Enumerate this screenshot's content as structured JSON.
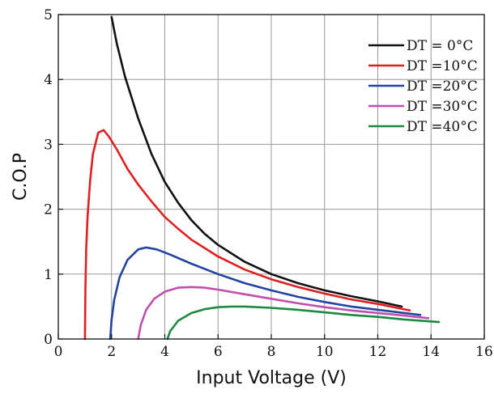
{
  "chart_data": {
    "type": "line",
    "xlabel": "Input Voltage (V)",
    "ylabel": "C.O.P",
    "xlim": [
      0,
      16
    ],
    "ylim": [
      0,
      5
    ],
    "xticks": [
      0,
      2,
      4,
      6,
      8,
      10,
      12,
      14,
      16
    ],
    "yticks": [
      0,
      1,
      2,
      3,
      4,
      5
    ],
    "grid": true,
    "legend_position": "top-right",
    "series": [
      {
        "name": "DT = 0°C",
        "color": "#111111",
        "x": [
          2.0,
          2.2,
          2.5,
          3.0,
          3.5,
          4.0,
          4.5,
          5.0,
          5.5,
          6.0,
          7.0,
          8.0,
          9.0,
          10.0,
          11.0,
          12.0,
          12.9
        ],
        "y": [
          4.96,
          4.55,
          4.05,
          3.4,
          2.85,
          2.42,
          2.1,
          1.83,
          1.62,
          1.45,
          1.19,
          1.0,
          0.86,
          0.75,
          0.66,
          0.58,
          0.5
        ]
      },
      {
        "name": "DT =10°C",
        "color": "#e02020",
        "x": [
          1.0,
          1.02,
          1.05,
          1.1,
          1.2,
          1.3,
          1.5,
          1.7,
          1.9,
          2.2,
          2.6,
          3.0,
          3.5,
          4.0,
          4.5,
          5.0,
          6.0,
          7.0,
          8.0,
          9.0,
          10.0,
          11.0,
          12.0,
          13.2
        ],
        "y": [
          0.0,
          0.8,
          1.4,
          1.9,
          2.45,
          2.85,
          3.18,
          3.22,
          3.12,
          2.92,
          2.62,
          2.38,
          2.12,
          1.88,
          1.7,
          1.53,
          1.27,
          1.07,
          0.92,
          0.8,
          0.7,
          0.61,
          0.54,
          0.44
        ]
      },
      {
        "name": "DT =20°C",
        "color": "#2244a0",
        "x": [
          1.95,
          2.0,
          2.1,
          2.3,
          2.6,
          3.0,
          3.3,
          3.7,
          4.2,
          5.0,
          6.0,
          7.0,
          8.0,
          9.0,
          10.0,
          11.0,
          12.0,
          13.0,
          13.6
        ],
        "y": [
          0.0,
          0.3,
          0.6,
          0.95,
          1.22,
          1.38,
          1.41,
          1.38,
          1.3,
          1.16,
          1.0,
          0.86,
          0.75,
          0.65,
          0.57,
          0.5,
          0.45,
          0.4,
          0.37
        ]
      },
      {
        "name": "DT =30°C",
        "color": "#c050b0",
        "x": [
          3.0,
          3.1,
          3.3,
          3.6,
          4.0,
          4.5,
          5.0,
          5.5,
          6.0,
          7.0,
          8.0,
          9.0,
          10.0,
          11.0,
          12.0,
          13.0,
          13.9
        ],
        "y": [
          0.0,
          0.22,
          0.45,
          0.62,
          0.73,
          0.79,
          0.8,
          0.79,
          0.76,
          0.69,
          0.62,
          0.55,
          0.49,
          0.44,
          0.4,
          0.36,
          0.32
        ]
      },
      {
        "name": "DT =40°C",
        "color": "#1a8a40",
        "x": [
          4.1,
          4.2,
          4.5,
          5.0,
          5.5,
          6.0,
          6.5,
          7.0,
          8.0,
          9.0,
          10.0,
          11.0,
          12.0,
          13.0,
          14.3
        ],
        "y": [
          0.0,
          0.12,
          0.28,
          0.4,
          0.46,
          0.49,
          0.5,
          0.5,
          0.48,
          0.45,
          0.41,
          0.37,
          0.34,
          0.3,
          0.26
        ]
      }
    ]
  }
}
